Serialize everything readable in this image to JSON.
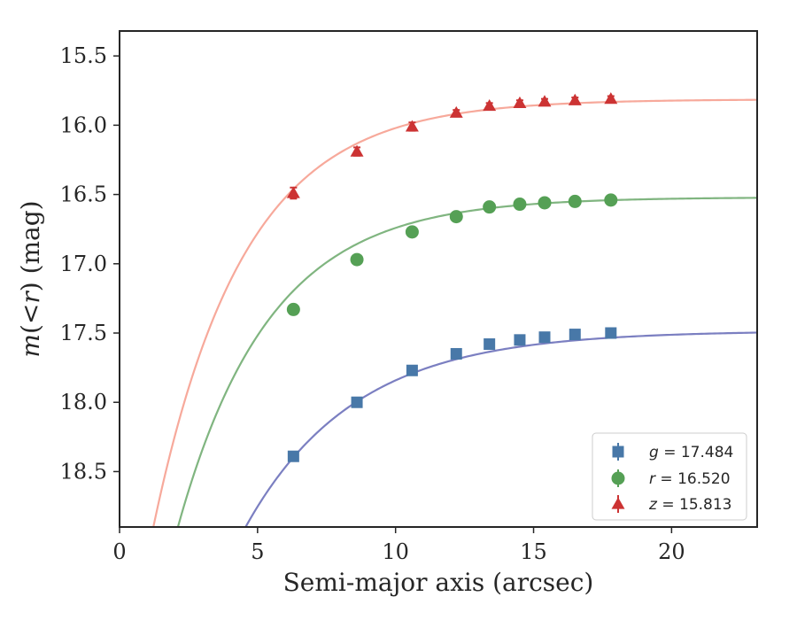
{
  "chart_data": {
    "type": "scatter",
    "title": "",
    "xlabel": "Semi-major axis (arcsec)",
    "ylabel_parts": {
      "m": "m",
      "open": "(",
      "lt": "<",
      "r": "r",
      "close": ")",
      "unit": " (mag)"
    },
    "xlim": [
      0,
      23.1
    ],
    "ylim": [
      18.9,
      15.32
    ],
    "y_inverted": true,
    "xticks": [
      0,
      5,
      10,
      15,
      20
    ],
    "xtick_labels": [
      "0",
      "5",
      "10",
      "15",
      "20"
    ],
    "yticks": [
      15.5,
      16.0,
      16.5,
      17.0,
      17.5,
      18.0,
      18.5
    ],
    "ytick_labels": [
      "15.5",
      "16.0",
      "16.5",
      "17.0",
      "17.5",
      "18.0",
      "18.5"
    ],
    "grid": false,
    "legend_position": "lower-right",
    "x": [
      6.3,
      8.6,
      10.6,
      12.2,
      13.4,
      14.5,
      15.4,
      16.5,
      17.8
    ],
    "series": [
      {
        "name": "g",
        "legend_var": "g",
        "legend_value": "17.484",
        "marker": "square",
        "color": "#4878a8",
        "fit_color": "#7b7fc1",
        "values": [
          18.39,
          18.0,
          17.77,
          17.65,
          17.58,
          17.55,
          17.53,
          17.51,
          17.5
        ],
        "errors": [
          0.02,
          0.02,
          0.015,
          0.01,
          0.01,
          0.01,
          0.01,
          0.01,
          0.01
        ],
        "fit": {
          "asymptote": 17.484,
          "amplitude": 4.5,
          "scale": 3.95
        }
      },
      {
        "name": "r",
        "legend_var": "r",
        "legend_value": "16.520",
        "marker": "circle",
        "color": "#55a055",
        "fit_color": "#80b580",
        "values": [
          17.33,
          16.97,
          16.77,
          16.66,
          16.59,
          16.57,
          16.56,
          16.55,
          16.54
        ],
        "errors": [
          0.03,
          0.02,
          0.015,
          0.01,
          0.01,
          0.01,
          0.01,
          0.01,
          0.01
        ],
        "fit": {
          "asymptote": 16.52,
          "amplitude": 4.5,
          "scale": 3.32
        }
      },
      {
        "name": "z",
        "legend_var": "z",
        "legend_value": "15.813",
        "marker": "triangle",
        "color": "#cc3333",
        "fit_color": "#f7a99b",
        "values": [
          16.49,
          16.19,
          16.01,
          15.91,
          15.86,
          15.84,
          15.83,
          15.82,
          15.81
        ],
        "errors": [
          0.04,
          0.03,
          0.03,
          0.02,
          0.02,
          0.02,
          0.02,
          0.02,
          0.02
        ],
        "fit": {
          "asymptote": 15.813,
          "amplitude": 4.5,
          "scale": 3.25
        }
      }
    ]
  }
}
